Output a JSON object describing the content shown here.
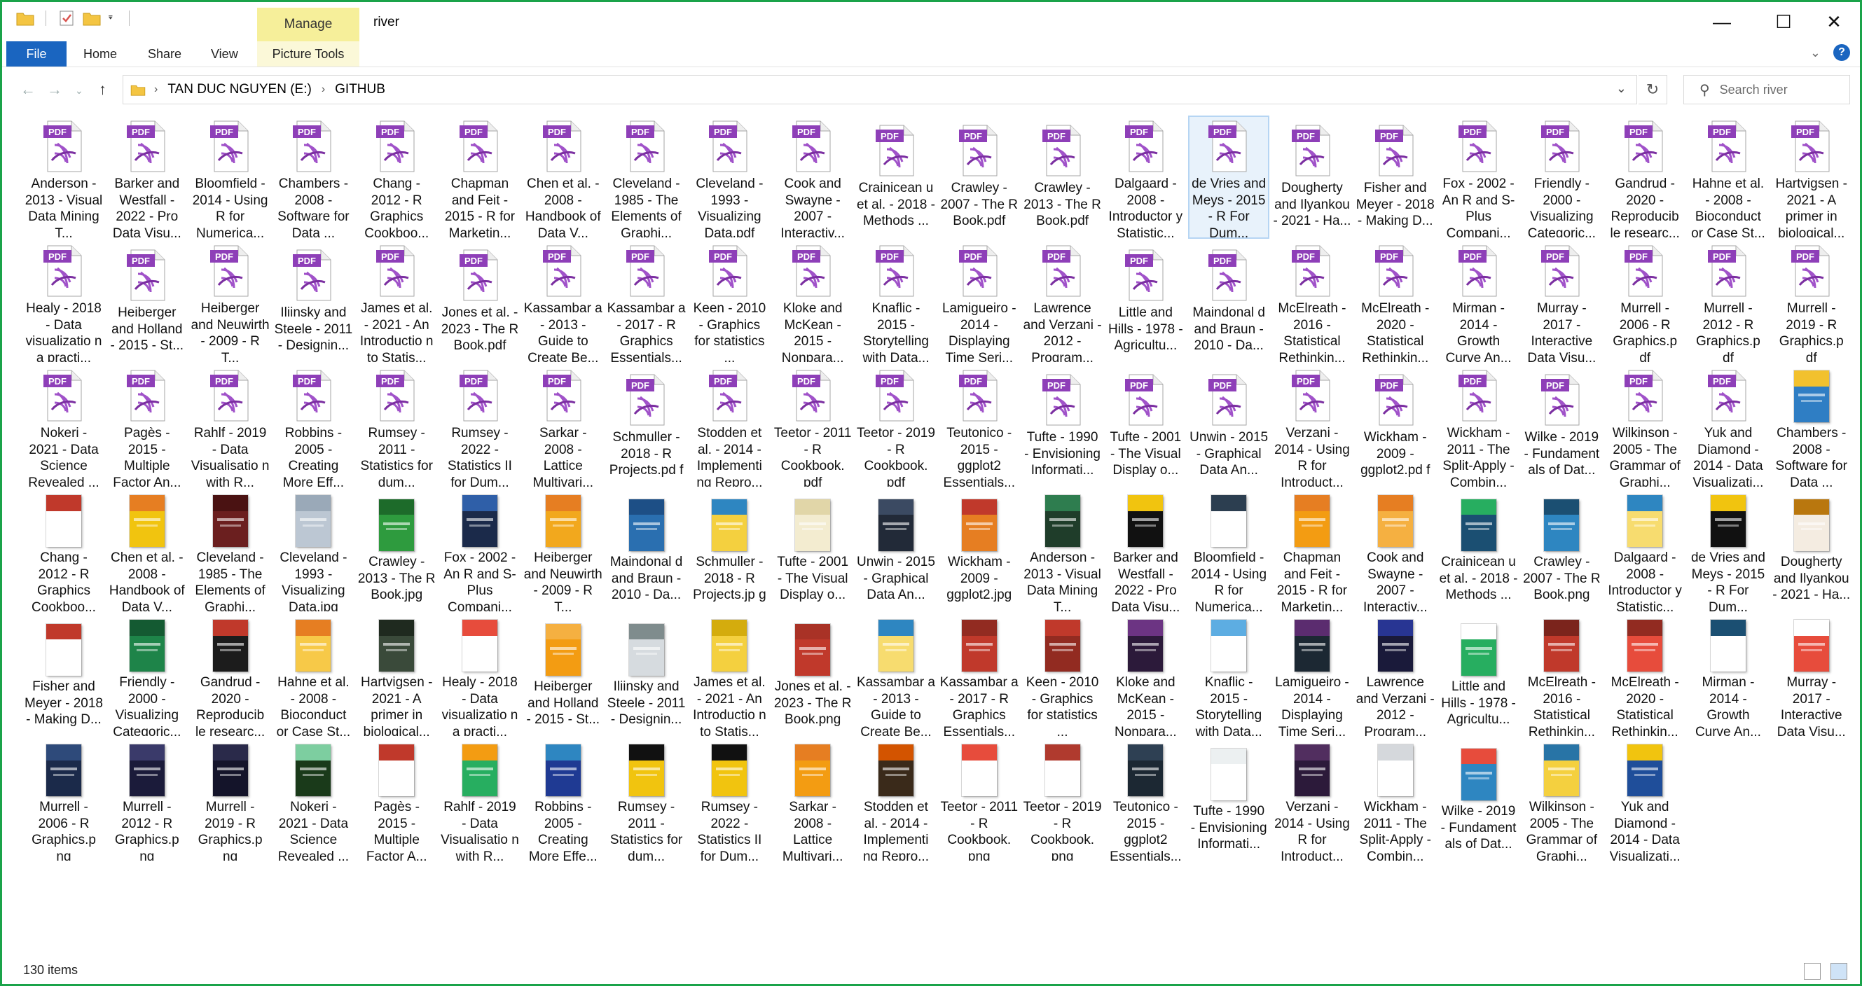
{
  "window": {
    "title": "river",
    "manage_tab": "Manage",
    "accent_color": "#1aa34a"
  },
  "ribbon": {
    "tabs": [
      "File",
      "Home",
      "Share",
      "View",
      "Picture Tools"
    ]
  },
  "address": {
    "drive": "TAN DUC NGUYEN (E:)",
    "folder": "GITHUB"
  },
  "search": {
    "placeholder": "Search river"
  },
  "status": {
    "count": "130 items"
  },
  "files": [
    {
      "label": "Anderson - 2013 - Visual Data Mining T...",
      "type": "pdf"
    },
    {
      "label": "Barker and Westfall - 2022 - Pro Data Visu...",
      "type": "pdf"
    },
    {
      "label": "Bloomfield - 2014 - Using R for Numerica...",
      "type": "pdf"
    },
    {
      "label": "Chambers - 2008 - Software for Data ...",
      "type": "pdf"
    },
    {
      "label": "Chang - 2012 - R Graphics Cookboo...",
      "type": "pdf"
    },
    {
      "label": "Chapman and Feit - 2015 - R for Marketin...",
      "type": "pdf"
    },
    {
      "label": "Chen et al. - 2008 - Handbook of Data V...",
      "type": "pdf"
    },
    {
      "label": "Cleveland - 1985 - The Elements of Graphi...",
      "type": "pdf"
    },
    {
      "label": "Cleveland - 1993 - Visualizing Data.pdf",
      "type": "pdf"
    },
    {
      "label": "Cook and Swayne - 2007 - Interactiv...",
      "type": "pdf"
    },
    {
      "label": "Crainicean u et al. - 2018 - Methods ...",
      "type": "pdf"
    },
    {
      "label": "Crawley - 2007 - The R Book.pdf",
      "type": "pdf"
    },
    {
      "label": "Crawley - 2013 - The R Book.pdf",
      "type": "pdf"
    },
    {
      "label": "Dalgaard - 2008 - Introductor y Statistic...",
      "type": "pdf"
    },
    {
      "label": "de Vries and Meys - 2015 - R For Dum...",
      "type": "pdf",
      "selected": true
    },
    {
      "label": "Dougherty and Ilyankou - 2021 - Ha...",
      "type": "pdf"
    },
    {
      "label": "Fisher and Meyer - 2018 - Making D...",
      "type": "pdf"
    },
    {
      "label": "Fox - 2002 - An R and S-Plus Compani...",
      "type": "pdf"
    },
    {
      "label": "Friendly - 2000 - Visualizing Categoric...",
      "type": "pdf"
    },
    {
      "label": "Gandrud - 2020 - Reproducib le researc...",
      "type": "pdf"
    },
    {
      "label": "Hahne et al. - 2008 - Bioconduct or Case St...",
      "type": "pdf"
    },
    {
      "label": "Hartvigsen - 2021 - A primer in biological...",
      "type": "pdf"
    },
    {
      "label": "Healy - 2018 - Data visualizatio n a practi...",
      "type": "pdf"
    },
    {
      "label": "Heiberger and Holland - 2015 - St...",
      "type": "pdf"
    },
    {
      "label": "Heiberger and Neuwirth - 2009 - R T...",
      "type": "pdf"
    },
    {
      "label": "Iliinsky and Steele - 2011 - Designin...",
      "type": "pdf"
    },
    {
      "label": "James et al. - 2021 - An Introductio n to Statis...",
      "type": "pdf"
    },
    {
      "label": "Jones et al. - 2023 - The R Book.pdf",
      "type": "pdf"
    },
    {
      "label": "Kassambar a - 2013 - Guide to Create Be...",
      "type": "pdf"
    },
    {
      "label": "Kassambar a - 2017 - R Graphics Essentials...",
      "type": "pdf"
    },
    {
      "label": "Keen - 2010 - Graphics for statistics ...",
      "type": "pdf"
    },
    {
      "label": "Kloke and McKean - 2015 - Nonpara...",
      "type": "pdf"
    },
    {
      "label": "Knaflic - 2015 - Storytelling with Data...",
      "type": "pdf"
    },
    {
      "label": "Lamigueiro - 2014 - Displaying Time Seri...",
      "type": "pdf"
    },
    {
      "label": "Lawrence and Verzani - 2012 - Program...",
      "type": "pdf"
    },
    {
      "label": "Little and Hills - 1978 - Agricultu...",
      "type": "pdf"
    },
    {
      "label": "Maindonal d and Braun - 2010 - Da...",
      "type": "pdf"
    },
    {
      "label": "McElreath - 2016 - Statistical Rethinkin...",
      "type": "pdf"
    },
    {
      "label": "McElreath - 2020 - Statistical Rethinkin...",
      "type": "pdf"
    },
    {
      "label": "Mirman - 2014 - Growth Curve An...",
      "type": "pdf"
    },
    {
      "label": "Murray - 2017 - Interactive Data Visu...",
      "type": "pdf"
    },
    {
      "label": "Murrell - 2006 - R Graphics.p df",
      "type": "pdf"
    },
    {
      "label": "Murrell - 2012 - R Graphics.p df",
      "type": "pdf"
    },
    {
      "label": "Murrell - 2019 - R Graphics.p df",
      "type": "pdf"
    },
    {
      "label": "Nokeri - 2021 - Data Science Revealed ...",
      "type": "pdf"
    },
    {
      "label": "Pagès - 2015 - Multiple Factor An...",
      "type": "pdf"
    },
    {
      "label": "Rahlf - 2019 - Data Visualisatio n with R...",
      "type": "pdf"
    },
    {
      "label": "Robbins - 2005 - Creating More Eff...",
      "type": "pdf"
    },
    {
      "label": "Rumsey - 2011 - Statistics for dum...",
      "type": "pdf"
    },
    {
      "label": "Rumsey - 2022 - Statistics II for Dum...",
      "type": "pdf"
    },
    {
      "label": "Sarkar - 2008 - Lattice Multivari...",
      "type": "pdf"
    },
    {
      "label": "Schmuller - 2018 - R Projects.pd f",
      "type": "pdf"
    },
    {
      "label": "Stodden et al. - 2014 - Implementi ng Repro...",
      "type": "pdf"
    },
    {
      "label": "Teetor - 2011 - R Cookbook. pdf",
      "type": "pdf"
    },
    {
      "label": "Teetor - 2019 - R Cookbook. pdf",
      "type": "pdf"
    },
    {
      "label": "Teutonico - 2015 - ggplot2 Essentials...",
      "type": "pdf"
    },
    {
      "label": "Tufte - 1990 - Envisioning Informati...",
      "type": "pdf"
    },
    {
      "label": "Tufte - 2001 - The Visual Display o...",
      "type": "pdf"
    },
    {
      "label": "Unwin - 2015 - Graphical Data An...",
      "type": "pdf"
    },
    {
      "label": "Verzani - 2014 - Using R for Introduct...",
      "type": "pdf"
    },
    {
      "label": "Wickham - 2009 - ggplot2.pd f",
      "type": "pdf"
    },
    {
      "label": "Wickham - 2011 - The Split-Apply -Combin...",
      "type": "pdf"
    },
    {
      "label": "Wilke - 2019 - Fundament als of Dat...",
      "type": "pdf"
    },
    {
      "label": "Wilkinson - 2005 - The Grammar of Graphi...",
      "type": "pdf"
    },
    {
      "label": "Yuk and Diamond - 2014 - Data Visualizati...",
      "type": "pdf"
    },
    {
      "label": "Chambers - 2008 - Software for Data ...",
      "type": "img",
      "color": "#2f7ec4",
      "band": "#f2c12e"
    },
    {
      "label": "Chang - 2012 - R Graphics Cookboo...",
      "type": "img",
      "color": "#ffffff",
      "band": "#c0392b"
    },
    {
      "label": "Chen et al. - 2008 - Handbook of Data V...",
      "type": "img",
      "color": "#f1c40f",
      "band": "#e67e22"
    },
    {
      "label": "Cleveland - 1985 - The Elements of Graphi...",
      "type": "img",
      "color": "#6b1f1f",
      "band": "#4a1212"
    },
    {
      "label": "Cleveland - 1993 - Visualizing Data.jpg",
      "type": "img",
      "color": "#bcc7d3",
      "band": "#9aa9b8"
    },
    {
      "label": "Crawley - 2013 - The R Book.jpg",
      "type": "img",
      "color": "#2e9b3e",
      "band": "#1d6b2a"
    },
    {
      "label": "Fox - 2002 - An R and S-Plus Compani...",
      "type": "img",
      "color": "#1b2a4a",
      "band": "#2f5fa8"
    },
    {
      "label": "Heiberger and Neuwirth - 2009 - R T...",
      "type": "img",
      "color": "#f2a81d",
      "band": "#e67e22"
    },
    {
      "label": "Maindonal d and Braun - 2010 - Da...",
      "type": "img",
      "color": "#2a6fb0",
      "band": "#1d4f86"
    },
    {
      "label": "Schmuller - 2018 - R Projects.jp g",
      "type": "img",
      "color": "#f4d03f",
      "band": "#2e86c1"
    },
    {
      "label": "Tufte - 2001 - The Visual Display o...",
      "type": "img",
      "color": "#f3ecd0",
      "band": "#e1d6a8"
    },
    {
      "label": "Unwin - 2015 - Graphical Data An...",
      "type": "img",
      "color": "#222a38",
      "band": "#3b4a62"
    },
    {
      "label": "Wickham - 2009 - ggplot2.jpg",
      "type": "img",
      "color": "#e67e22",
      "band": "#c0392b"
    },
    {
      "label": "Anderson - 2013 - Visual Data Mining T...",
      "type": "img",
      "color": "#1f3d2a",
      "band": "#2e7d4f"
    },
    {
      "label": "Barker and Westfall - 2022 - Pro Data Visu...",
      "type": "img",
      "color": "#111111",
      "band": "#f1c40f"
    },
    {
      "label": "Bloomfield - 2014 - Using R for Numerica...",
      "type": "img",
      "color": "#ffffff",
      "band": "#2c3e50"
    },
    {
      "label": "Chapman and Feit - 2015 - R for Marketin...",
      "type": "img",
      "color": "#f39c12",
      "band": "#e67e22"
    },
    {
      "label": "Cook and Swayne - 2007 - Interactiv...",
      "type": "img",
      "color": "#f5b041",
      "band": "#e67e22"
    },
    {
      "label": "Crainicean u et al. - 2018 - Methods ...",
      "type": "img",
      "color": "#1b4f72",
      "band": "#27ae60"
    },
    {
      "label": "Crawley - 2007 - The R Book.png",
      "type": "img",
      "color": "#2e86c1",
      "band": "#1b4f72"
    },
    {
      "label": "Dalgaard - 2008 - Introductor y Statistic...",
      "type": "img",
      "color": "#f7dc6f",
      "band": "#2e86c1"
    },
    {
      "label": "de Vries and Meys - 2015 - R For Dum...",
      "type": "img",
      "color": "#111111",
      "band": "#f1c40f"
    },
    {
      "label": "Dougherty and Ilyankou - 2021 - Ha...",
      "type": "img",
      "color": "#f4ece1",
      "band": "#b9770e"
    },
    {
      "label": "Fisher and Meyer - 2018 - Making D...",
      "type": "img",
      "color": "#ffffff",
      "band": "#c0392b"
    },
    {
      "label": "Friendly - 2000 - Visualizing Categoric...",
      "type": "img",
      "color": "#1e8449",
      "band": "#145a32"
    },
    {
      "label": "Gandrud - 2020 - Reproducib le researc...",
      "type": "img",
      "color": "#1c1c1c",
      "band": "#c0392b"
    },
    {
      "label": "Hahne et al. - 2008 - Bioconduct or Case St...",
      "type": "img",
      "color": "#f7c948",
      "band": "#e67e22"
    },
    {
      "label": "Hartvigsen - 2021 - A primer in biological...",
      "type": "img",
      "color": "#3a4a3a",
      "band": "#1f2a1f"
    },
    {
      "label": "Healy - 2018 - Data visualizatio n a practi...",
      "type": "img",
      "color": "#ffffff",
      "band": "#e74c3c"
    },
    {
      "label": "Heiberger and Holland - 2015 - St...",
      "type": "img",
      "color": "#f39c12",
      "band": "#f5b041"
    },
    {
      "label": "Iliinsky and Steele - 2011 - Designin...",
      "type": "img",
      "color": "#d6dbdf",
      "band": "#7f8c8d"
    },
    {
      "label": "James et al. - 2021 - An Introductio n to Statis...",
      "type": "img",
      "color": "#f4d03f",
      "band": "#d4ac0d"
    },
    {
      "label": "Jones et al. - 2023 - The R Book.png",
      "type": "img",
      "color": "#c0392b",
      "band": "#a93226"
    },
    {
      "label": "Kassambar a - 2013 - Guide to Create Be...",
      "type": "img",
      "color": "#f7dc6f",
      "band": "#2e86c1"
    },
    {
      "label": "Kassambar a - 2017 - R Graphics Essentials...",
      "type": "img",
      "color": "#c0392b",
      "band": "#922b21"
    },
    {
      "label": "Keen - 2010 - Graphics for statistics ...",
      "type": "img",
      "color": "#922b21",
      "band": "#c0392b"
    },
    {
      "label": "Kloke and McKean - 2015 - Nonpara...",
      "type": "img",
      "color": "#2c1a3a",
      "band": "#6c3483"
    },
    {
      "label": "Knaflic - 2015 - Storytelling with Data...",
      "type": "img",
      "color": "#ffffff",
      "band": "#5dade2"
    },
    {
      "label": "Lamigueiro - 2014 - Displaying Time Seri...",
      "type": "img",
      "color": "#1c2833",
      "band": "#5b2c6f"
    },
    {
      "label": "Lawrence and Verzani - 2012 - Program...",
      "type": "img",
      "color": "#1a1a3a",
      "band": "#283593"
    },
    {
      "label": "Little and Hills - 1978 - Agricultu...",
      "type": "img",
      "color": "#27ae60",
      "band": "#ffffff"
    },
    {
      "label": "McElreath - 2016 - Statistical Rethinkin...",
      "type": "img",
      "color": "#c0392b",
      "band": "#7b241c"
    },
    {
      "label": "McElreath - 2020 - Statistical Rethinkin...",
      "type": "img",
      "color": "#e74c3c",
      "band": "#922b21"
    },
    {
      "label": "Mirman - 2014 - Growth Curve An...",
      "type": "img",
      "color": "#ffffff",
      "band": "#1b4f72"
    },
    {
      "label": "Murray - 2017 - Interactive Data Visu...",
      "type": "img",
      "color": "#e74c3c",
      "band": "#ffffff"
    },
    {
      "label": "Murrell - 2006 - R Graphics.p ng",
      "type": "img",
      "color": "#1b2a4a",
      "band": "#2e4a7a"
    },
    {
      "label": "Murrell - 2012 - R Graphics.p ng",
      "type": "img",
      "color": "#1b1b3a",
      "band": "#3a3a6a"
    },
    {
      "label": "Murrell - 2019 - R Graphics.p ng",
      "type": "img",
      "color": "#14142a",
      "band": "#2a2a4a"
    },
    {
      "label": "Nokeri - 2021 - Data Science Revealed ...",
      "type": "img",
      "color": "#1a3a1a",
      "band": "#7dcea0"
    },
    {
      "label": "Pagès - 2015 - Multiple Factor A...",
      "type": "img",
      "color": "#ffffff",
      "band": "#c0392b"
    },
    {
      "label": "Rahlf - 2019 - Data Visualisatio n with R...",
      "type": "img",
      "color": "#27ae60",
      "band": "#f39c12"
    },
    {
      "label": "Robbins - 2005 - Creating More Effe...",
      "type": "img",
      "color": "#1f3a93",
      "band": "#2e86c1"
    },
    {
      "label": "Rumsey - 2011 - Statistics for dum...",
      "type": "img",
      "color": "#f1c40f",
      "band": "#111111"
    },
    {
      "label": "Rumsey - 2022 - Statistics II for Dum...",
      "type": "img",
      "color": "#f1c40f",
      "band": "#111111"
    },
    {
      "label": "Sarkar - 2008 - Lattice Multivari...",
      "type": "img",
      "color": "#f39c12",
      "band": "#e67e22"
    },
    {
      "label": "Stodden et al. - 2014 - Implementi ng Repro...",
      "type": "img",
      "color": "#3a2a1a",
      "band": "#d35400"
    },
    {
      "label": "Teetor - 2011 - R Cookbook. png",
      "type": "img",
      "color": "#ffffff",
      "band": "#e74c3c"
    },
    {
      "label": "Teetor - 2019 - R Cookbook. png",
      "type": "img",
      "color": "#ffffff",
      "band": "#b03a2e"
    },
    {
      "label": "Teutonico - 2015 - ggplot2 Essentials...",
      "type": "img",
      "color": "#1c2833",
      "band": "#2e4053"
    },
    {
      "label": "Tufte - 1990 - Envisioning Informati...",
      "type": "img",
      "color": "#ffffff",
      "band": "#ecf0f1"
    },
    {
      "label": "Verzani - 2014 - Using R for Introduct...",
      "type": "img",
      "color": "#2c1a3a",
      "band": "#512e5f"
    },
    {
      "label": "Wickham - 2011 - The Split-Apply -Combin...",
      "type": "img",
      "color": "#ffffff",
      "band": "#d5d8dc"
    },
    {
      "label": "Wilke - 2019 - Fundament als of Dat...",
      "type": "img",
      "color": "#2e86c1",
      "band": "#e74c3c"
    },
    {
      "label": "Wilkinson - 2005 - The Grammar of Graphi...",
      "type": "img",
      "color": "#f4d03f",
      "band": "#2874a6"
    },
    {
      "label": "Yuk and Diamond - 2014 - Data Visualizati...",
      "type": "img",
      "color": "#1f4e9a",
      "band": "#f1c40f"
    }
  ]
}
